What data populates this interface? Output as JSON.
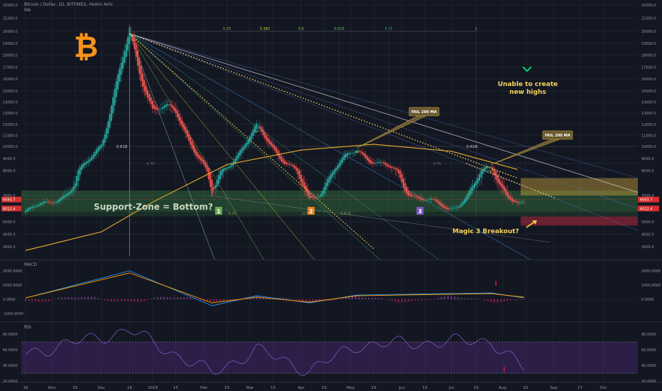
{
  "header": {
    "symbol_line": "Bitcoin / Dollar, 1D, BITFINEX, Heikin Ashi",
    "indicator": "MA"
  },
  "colors": {
    "bg": "#131722",
    "up": "#26a69a",
    "down": "#ef5350",
    "ma": "#e8b02c",
    "yellow": "#f5d25b",
    "zone": "#4caf50",
    "rsi_fill": "#5b2a8c",
    "macd_line": "#2196f3",
    "signal_line": "#ff9800",
    "price_tag": "#d32f2f"
  },
  "price_axis": {
    "labels": [
      "22000.0",
      "21000.0",
      "20000.0",
      "19000.0",
      "18000.0",
      "17000.0",
      "16000.0",
      "15000.0",
      "14000.0",
      "13000.0",
      "12000.0",
      "11000.0",
      "10000.0",
      "9000.0",
      "8000.0",
      "7000.0",
      "5000.0",
      "4000.0",
      "3000.0"
    ],
    "tags": [
      "6693.7",
      "6012.4"
    ]
  },
  "time_axis": {
    "labels": [
      "16",
      "Nov",
      "15",
      "Dec",
      "18",
      "2018",
      "15",
      "Feb",
      "15",
      "Mar",
      "15",
      "Apr",
      "15",
      "May",
      "15",
      "Jun",
      "15",
      "Jul",
      "16",
      "Aug",
      "15",
      "Sep",
      "17",
      "Oct"
    ]
  },
  "fib_top_labels": [
    "0",
    "0.25",
    "0.382",
    "0.5",
    "0.618",
    "0.75",
    "1"
  ],
  "fib_mid_labels": {
    "left_618": "0.618",
    "left_75": "0.75",
    "right_618": "0.618",
    "right_75": "0.75"
  },
  "fib_bottom_labels": [
    "0",
    "0.25",
    "0.5",
    "0.618"
  ],
  "annotations": {
    "support_zone": "Support-Zone = Bottom?",
    "zone_1": "1",
    "zone_2": "2",
    "zone_3": "3",
    "fail_1": "FAIL 200 MA",
    "fail_2": "FAIL 200 MA",
    "highs_line1": "Unable to create",
    "highs_line2": "new highs",
    "magic": "Magic 3 Breakout?",
    "logo": "₿"
  },
  "macd": {
    "title": "MACD",
    "axis": [
      "2000.0000",
      "1000.0000",
      "0.0000"
    ],
    "left_axis": [
      "2000.0000",
      "1000.0000",
      "0.0000",
      "-1000.0000"
    ]
  },
  "rsi": {
    "title": "RSI",
    "axis": [
      "80.0000",
      "60.0000",
      "40.0000",
      "20.0000"
    ],
    "left_axis": [
      "80.0000",
      "60.0000",
      "40.0000",
      "20.0000"
    ]
  },
  "chart_data": [
    {
      "type": "candlestick",
      "title": "Bitcoin / Dollar, 1D, BITFINEX, Heikin Ashi",
      "ylim": [
        2300,
        22400
      ],
      "x_range": [
        "2017-10-16",
        "2018-10-22"
      ],
      "series": [
        {
          "name": "BTCUSD Heikin Ashi close (approx)",
          "x": [
            "2017-10-16",
            "2017-11-01",
            "2017-11-15",
            "2017-12-01",
            "2017-12-18",
            "2018-01-01",
            "2018-01-15",
            "2018-02-06",
            "2018-03-05",
            "2018-04-06",
            "2018-05-05",
            "2018-06-01",
            "2018-06-29",
            "2018-07-25",
            "2018-08-11"
          ],
          "values": [
            5700,
            6700,
            7300,
            10500,
            19600,
            13500,
            13000,
            6900,
            11500,
            6600,
            9700,
            7500,
            5900,
            8300,
            6200
          ]
        },
        {
          "name": "MA",
          "x": [
            "2017-10-16",
            "2017-12-01",
            "2018-01-01",
            "2018-02-15",
            "2018-04-01",
            "2018-05-15",
            "2018-07-01",
            "2018-08-10"
          ],
          "values": [
            2700,
            4200,
            6500,
            8500,
            9700,
            10200,
            9600,
            8100
          ]
        }
      ],
      "zones": [
        {
          "label": "Support-Zone = Bottom?",
          "from": 5750,
          "to": 7200
        },
        {
          "from": 7000,
          "to": 7700
        },
        {
          "from": 4700,
          "to": 5400
        }
      ]
    },
    {
      "type": "line",
      "title": "MACD",
      "ylim": [
        -1600,
        2600
      ],
      "series": [
        {
          "name": "MACD",
          "x": [
            "2017-10-16",
            "2017-12-18",
            "2018-02-06",
            "2018-03-05",
            "2018-04-06",
            "2018-05-05",
            "2018-07-25",
            "2018-08-14"
          ],
          "values": [
            100,
            2000,
            -450,
            250,
            -250,
            300,
            450,
            100
          ]
        },
        {
          "name": "Signal",
          "x": [
            "2017-10-16",
            "2017-12-18",
            "2018-02-06",
            "2018-03-05",
            "2018-04-06",
            "2018-05-05",
            "2018-07-25",
            "2018-08-14"
          ],
          "values": [
            100,
            1850,
            -250,
            150,
            -200,
            250,
            400,
            150
          ]
        }
      ]
    },
    {
      "type": "line",
      "title": "RSI",
      "ylim": [
        15,
        90
      ],
      "series": [
        {
          "name": "RSI",
          "x": [
            "2017-10-16",
            "2017-12-18",
            "2018-02-06",
            "2018-03-05",
            "2018-04-06",
            "2018-05-05",
            "2018-07-25",
            "2018-08-14"
          ],
          "values": [
            55,
            85,
            30,
            60,
            33,
            66,
            72,
            35
          ]
        }
      ],
      "levels": [
        70,
        30
      ]
    }
  ]
}
